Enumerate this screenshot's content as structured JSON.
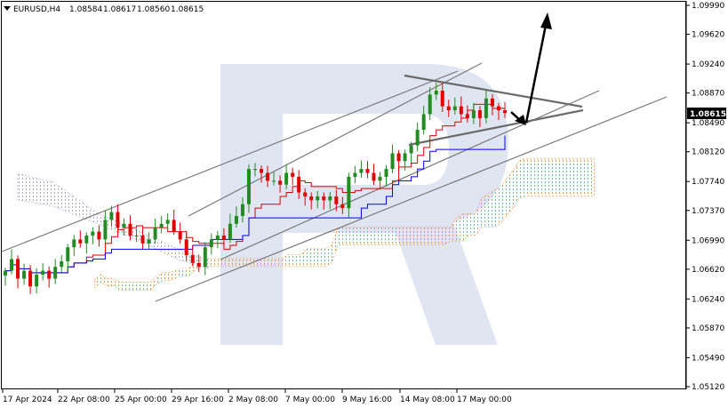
{
  "chart_data": {
    "type": "candlestick",
    "symbol_tf": "EURUSD,H4",
    "ohlc": {
      "open": "1.08584",
      "high": "1.08617",
      "low": "1.08560",
      "close": "1.08615"
    },
    "current_price": "1.08615",
    "y_ticks": [
      "1.09990",
      "1.09620",
      "1.09240",
      "1.08870",
      "1.08490",
      "1.08120",
      "1.07740",
      "1.07370",
      "1.06990",
      "1.06620",
      "1.06240",
      "1.05870",
      "1.05490",
      "1.05120"
    ],
    "y_tick_values": [
      1.0999,
      1.0962,
      1.0924,
      1.0887,
      1.0849,
      1.0812,
      1.0774,
      1.0737,
      1.0699,
      1.0662,
      1.0624,
      1.0587,
      1.0549,
      1.0512
    ],
    "x_ticks": [
      "17 Apr 2024",
      "22 Apr 08:00",
      "25 Apr 00:00",
      "29 Apr 16:00",
      "2 May 08:00",
      "7 May 00:00",
      "9 May 16:00",
      "14 May 08:00",
      "17 May 00:00"
    ],
    "price_path": [
      1.066,
      1.0675,
      1.065,
      1.066,
      1.064,
      1.0655,
      1.066,
      1.065,
      1.0665,
      1.0672,
      1.069,
      1.07,
      1.0695,
      1.0705,
      1.071,
      1.07,
      1.0725,
      1.0735,
      1.0715,
      1.072,
      1.0705,
      1.0705,
      1.0695,
      1.07,
      1.0715,
      1.072,
      1.0725,
      1.071,
      1.07,
      1.068,
      1.067,
      1.0665,
      1.069,
      1.07,
      1.0705,
      1.07,
      1.072,
      1.073,
      1.0745,
      1.079,
      1.079,
      1.0785,
      1.0775,
      1.0775,
      1.077,
      1.0785,
      1.078,
      1.076,
      1.0755,
      1.075,
      1.0755,
      1.075,
      1.0755,
      1.0745,
      1.074,
      1.078,
      1.0785,
      1.079,
      1.0785,
      1.0775,
      1.078,
      1.079,
      1.081,
      1.08,
      1.081,
      1.082,
      1.084,
      1.086,
      1.0885,
      1.089,
      1.087,
      1.0865,
      1.087,
      1.086,
      1.0855,
      1.0865,
      1.0855,
      1.088,
      1.087,
      1.0865,
      1.08615
    ],
    "colors": {
      "bull": "#228b22",
      "bear": "#e00000",
      "tenkan": "#e00000",
      "kijun": "#0000ff",
      "cloud": "#e8954a",
      "cloud2": "#a9a9c8",
      "channel": "#7a7a7a",
      "arrow": "#000000",
      "price_box": "#000000",
      "watermark": "#dbe2ee"
    }
  }
}
